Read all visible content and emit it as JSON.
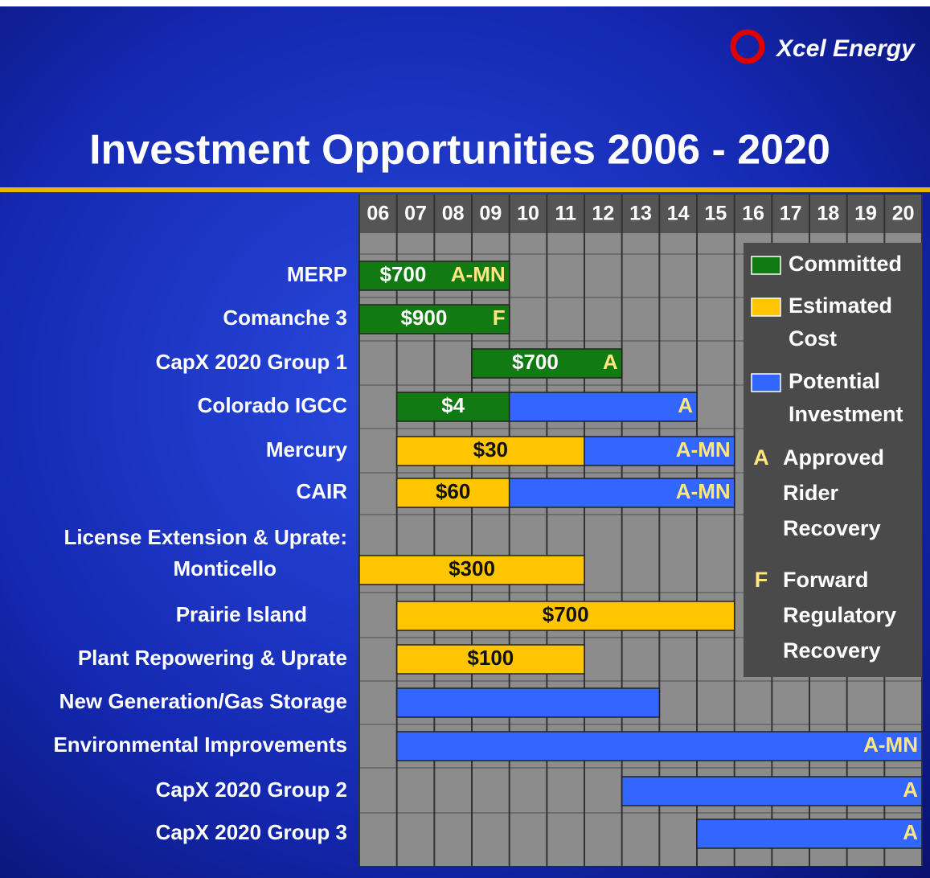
{
  "logo": "Xcel Energy",
  "chart_data": {
    "type": "gantt",
    "title": "Investment Opportunities  2006 - 2020",
    "xlim": [
      2006,
      2021
    ],
    "xticks": [
      {
        "value": 2006,
        "label": "06"
      },
      {
        "value": 2007,
        "label": "07"
      },
      {
        "value": 2008,
        "label": "08"
      },
      {
        "value": 2009,
        "label": "09"
      },
      {
        "value": 2010,
        "label": "10"
      },
      {
        "value": 2011,
        "label": "11"
      },
      {
        "value": 2012,
        "label": "12"
      },
      {
        "value": 2013,
        "label": "13"
      },
      {
        "value": 2014,
        "label": "14"
      },
      {
        "value": 2015,
        "label": "15"
      },
      {
        "value": 2016,
        "label": "16"
      },
      {
        "value": 2017,
        "label": "17"
      },
      {
        "value": 2018,
        "label": "18"
      },
      {
        "value": 2019,
        "label": "19"
      },
      {
        "value": 2020,
        "label": "20"
      }
    ],
    "colors": {
      "committed": "#127a12",
      "estimated": "#ffc600",
      "potential": "#3366ff"
    },
    "rows": [
      {
        "name": "MERP",
        "segments": [
          {
            "kind": "committed",
            "start": 2006,
            "end": 2009,
            "text": "$700",
            "note": "A-MN"
          }
        ]
      },
      {
        "name": "Comanche 3",
        "segments": [
          {
            "kind": "committed",
            "start": 2006,
            "end": 2009,
            "text": "$900",
            "note": "F"
          }
        ]
      },
      {
        "name": "CapX 2020 Group 1",
        "segments": [
          {
            "kind": "committed",
            "start": 2009,
            "end": 2012,
            "text": "$700",
            "note": "A"
          }
        ]
      },
      {
        "name": "Colorado IGCC",
        "segments": [
          {
            "kind": "committed",
            "start": 2007,
            "end": 2009,
            "text": "$4"
          },
          {
            "kind": "potential",
            "start": 2010,
            "end": 2014,
            "note": "A"
          }
        ]
      },
      {
        "name": "Mercury",
        "segments": [
          {
            "kind": "estimated",
            "start": 2007,
            "end": 2011,
            "text": "$30"
          },
          {
            "kind": "potential",
            "start": 2012,
            "end": 2015,
            "note": "A-MN"
          }
        ]
      },
      {
        "name": "CAIR",
        "segments": [
          {
            "kind": "estimated",
            "start": 2007,
            "end": 2009,
            "text": "$60"
          },
          {
            "kind": "potential",
            "start": 2010,
            "end": 2015,
            "note": "A-MN"
          }
        ]
      },
      {
        "name": "License Extension & Uprate:",
        "segments": []
      },
      {
        "name": "Monticello",
        "segments": [
          {
            "kind": "estimated",
            "start": 2006,
            "end": 2011,
            "text": "$300"
          }
        ]
      },
      {
        "name": "Prairie Island",
        "segments": [
          {
            "kind": "estimated",
            "start": 2007,
            "end": 2015,
            "text": "$700"
          }
        ]
      },
      {
        "name": "Plant Repowering & Uprate",
        "segments": [
          {
            "kind": "estimated",
            "start": 2007,
            "end": 2011,
            "text": "$100"
          }
        ]
      },
      {
        "name": "New Generation/Gas Storage",
        "segments": [
          {
            "kind": "potential",
            "start": 2007,
            "end": 2013
          }
        ]
      },
      {
        "name": "Environmental Improvements",
        "segments": [
          {
            "kind": "potential",
            "start": 2007,
            "end": 2020,
            "note": "A-MN"
          }
        ]
      },
      {
        "name": "CapX 2020 Group 2",
        "segments": [
          {
            "kind": "potential",
            "start": 2013,
            "end": 2020,
            "note": "A"
          }
        ]
      },
      {
        "name": "CapX 2020 Group 3",
        "segments": [
          {
            "kind": "potential",
            "start": 2015,
            "end": 2020,
            "note": "A"
          }
        ]
      }
    ],
    "legend": {
      "swatches": [
        {
          "kind": "committed",
          "lines": [
            "Committed"
          ]
        },
        {
          "kind": "estimated",
          "lines": [
            "Estimated",
            "Cost"
          ]
        },
        {
          "kind": "potential",
          "lines": [
            "Potential",
            "Investment"
          ]
        }
      ],
      "codes": [
        {
          "code": "A",
          "lines": [
            "Approved",
            "Rider",
            "Recovery"
          ]
        },
        {
          "code": "F",
          "lines": [
            "Forward",
            "Regulatory",
            "Recovery"
          ]
        }
      ]
    }
  }
}
